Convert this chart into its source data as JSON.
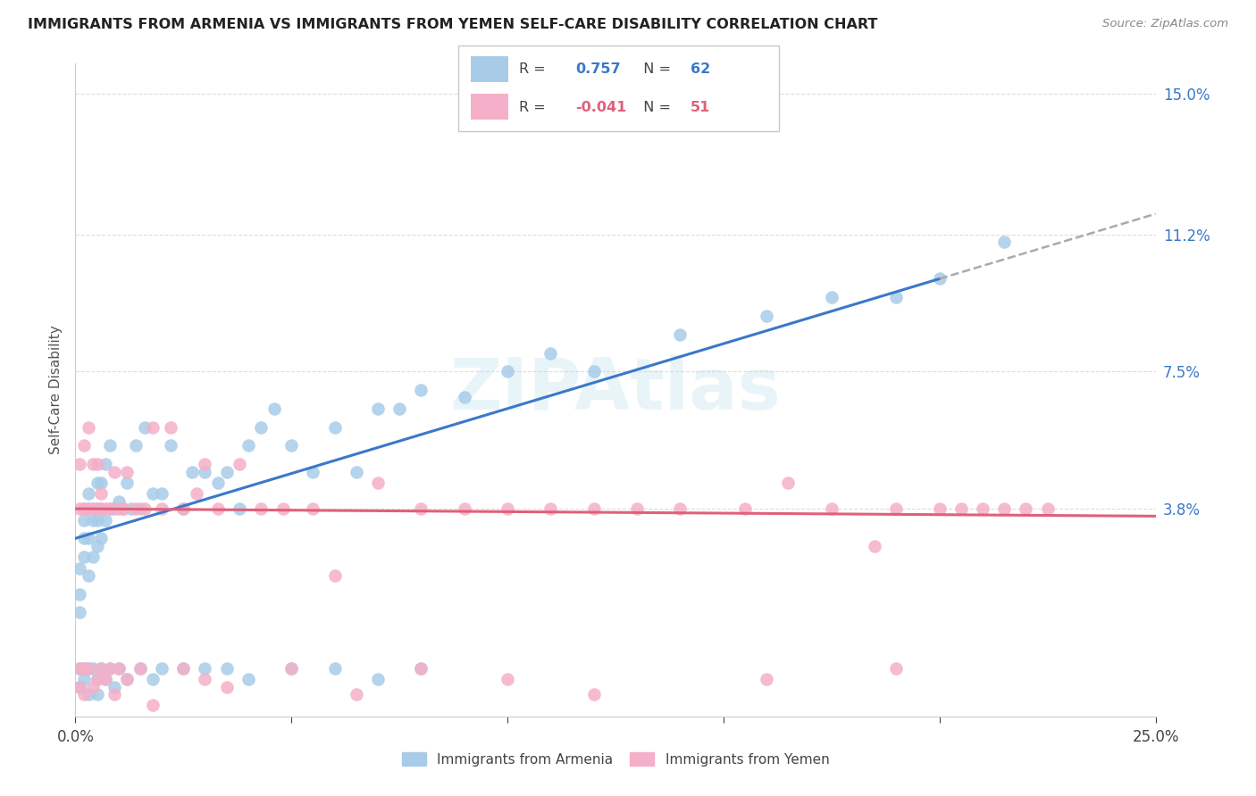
{
  "title": "IMMIGRANTS FROM ARMENIA VS IMMIGRANTS FROM YEMEN SELF-CARE DISABILITY CORRELATION CHART",
  "source": "Source: ZipAtlas.com",
  "ylabel": "Self-Care Disability",
  "watermark": "ZIPAtlas",
  "xlim": [
    0.0,
    0.25
  ],
  "ylim": [
    -0.018,
    0.158
  ],
  "ytick_vals": [
    0.038,
    0.075,
    0.112,
    0.15
  ],
  "ytick_labels": [
    "3.8%",
    "7.5%",
    "11.2%",
    "15.0%"
  ],
  "xtick_positions": [
    0.0,
    0.05,
    0.1,
    0.15,
    0.2,
    0.25
  ],
  "xtick_labels": [
    "0.0%",
    "",
    "",
    "",
    "",
    "25.0%"
  ],
  "armenia_color": "#a8cce8",
  "armenia_line_color": "#3a78c9",
  "armenia_dash_color": "#aaaaaa",
  "yemen_color": "#f5afc8",
  "yemen_line_color": "#e0607a",
  "R_armenia": "0.757",
  "N_armenia": "62",
  "R_yemen": "-0.041",
  "N_yemen": "51",
  "armenia_x": [
    0.001,
    0.001,
    0.001,
    0.002,
    0.002,
    0.002,
    0.002,
    0.003,
    0.003,
    0.003,
    0.003,
    0.004,
    0.004,
    0.004,
    0.005,
    0.005,
    0.005,
    0.005,
    0.006,
    0.006,
    0.006,
    0.007,
    0.007,
    0.008,
    0.008,
    0.009,
    0.01,
    0.011,
    0.012,
    0.013,
    0.014,
    0.015,
    0.016,
    0.018,
    0.02,
    0.022,
    0.025,
    0.027,
    0.03,
    0.033,
    0.035,
    0.038,
    0.04,
    0.043,
    0.046,
    0.05,
    0.055,
    0.06,
    0.065,
    0.07,
    0.075,
    0.08,
    0.09,
    0.1,
    0.11,
    0.12,
    0.14,
    0.16,
    0.175,
    0.19,
    0.2,
    0.215
  ],
  "armenia_y": [
    0.01,
    0.015,
    0.022,
    0.025,
    0.03,
    0.035,
    0.038,
    0.02,
    0.03,
    0.038,
    0.042,
    0.025,
    0.035,
    0.038,
    0.028,
    0.035,
    0.038,
    0.045,
    0.03,
    0.038,
    0.045,
    0.035,
    0.05,
    0.038,
    0.055,
    0.038,
    0.04,
    0.038,
    0.045,
    0.038,
    0.055,
    0.038,
    0.06,
    0.042,
    0.042,
    0.055,
    0.038,
    0.048,
    0.048,
    0.045,
    0.048,
    0.038,
    0.055,
    0.06,
    0.065,
    0.055,
    0.048,
    0.06,
    0.048,
    0.065,
    0.065,
    0.07,
    0.068,
    0.075,
    0.08,
    0.075,
    0.085,
    0.09,
    0.095,
    0.095,
    0.1,
    0.11
  ],
  "yemen_x": [
    0.001,
    0.001,
    0.002,
    0.002,
    0.003,
    0.003,
    0.004,
    0.004,
    0.005,
    0.005,
    0.006,
    0.006,
    0.007,
    0.008,
    0.009,
    0.01,
    0.011,
    0.012,
    0.014,
    0.016,
    0.018,
    0.02,
    0.022,
    0.025,
    0.028,
    0.03,
    0.033,
    0.038,
    0.043,
    0.048,
    0.055,
    0.06,
    0.07,
    0.08,
    0.09,
    0.1,
    0.11,
    0.12,
    0.13,
    0.14,
    0.155,
    0.165,
    0.175,
    0.185,
    0.19,
    0.2,
    0.205,
    0.21,
    0.215,
    0.22,
    0.225
  ],
  "yemen_y": [
    0.038,
    0.05,
    0.038,
    0.055,
    0.038,
    0.06,
    0.038,
    0.05,
    0.038,
    0.05,
    0.038,
    0.042,
    0.038,
    0.038,
    0.048,
    0.038,
    0.038,
    0.048,
    0.038,
    0.038,
    0.06,
    0.038,
    0.06,
    0.038,
    0.042,
    0.05,
    0.038,
    0.05,
    0.038,
    0.038,
    0.038,
    0.02,
    0.045,
    0.038,
    0.038,
    0.038,
    0.038,
    0.038,
    0.038,
    0.038,
    0.038,
    0.045,
    0.038,
    0.028,
    0.038,
    0.038,
    0.038,
    0.038,
    0.038,
    0.038,
    0.038
  ],
  "armenia_neg_x": [
    0.001,
    0.001,
    0.002,
    0.002,
    0.003,
    0.003,
    0.004,
    0.005,
    0.005,
    0.006,
    0.007,
    0.008,
    0.009,
    0.01,
    0.012,
    0.015,
    0.018,
    0.02,
    0.025,
    0.03,
    0.035,
    0.04,
    0.05,
    0.06,
    0.07,
    0.08
  ],
  "armenia_neg_y": [
    -0.005,
    -0.01,
    -0.005,
    -0.008,
    -0.005,
    -0.012,
    -0.005,
    -0.008,
    -0.012,
    -0.005,
    -0.008,
    -0.005,
    -0.01,
    -0.005,
    -0.008,
    -0.005,
    -0.008,
    -0.005,
    -0.005,
    -0.005,
    -0.005,
    -0.008,
    -0.005,
    -0.005,
    -0.008,
    -0.005
  ],
  "yemen_neg_x": [
    0.001,
    0.001,
    0.002,
    0.002,
    0.003,
    0.004,
    0.005,
    0.006,
    0.007,
    0.008,
    0.009,
    0.01,
    0.012,
    0.015,
    0.018,
    0.025,
    0.03,
    0.035,
    0.05,
    0.065,
    0.08,
    0.1,
    0.12,
    0.16,
    0.19
  ],
  "yemen_neg_y": [
    -0.005,
    -0.01,
    -0.005,
    -0.012,
    -0.005,
    -0.01,
    -0.008,
    -0.005,
    -0.008,
    -0.005,
    -0.012,
    -0.005,
    -0.008,
    -0.005,
    -0.015,
    -0.005,
    -0.008,
    -0.01,
    -0.005,
    -0.012,
    -0.005,
    -0.008,
    -0.012,
    -0.008,
    -0.005
  ]
}
